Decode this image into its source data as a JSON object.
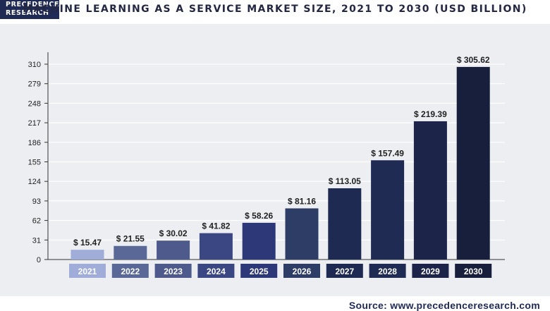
{
  "brand": {
    "line1": "PRECEDENCE",
    "line2": "RESEARCH"
  },
  "source_text": "Source: www.precedenceresearch.com",
  "chart_data": {
    "type": "bar",
    "title": "MACHINE LEARNING AS A SERVICE MARKET SIZE, 2021 TO 2030 (USD BILLION)",
    "categories": [
      "2021",
      "2022",
      "2023",
      "2024",
      "2025",
      "2026",
      "2027",
      "2028",
      "2029",
      "2030"
    ],
    "values": [
      15.47,
      21.55,
      30.02,
      41.82,
      58.26,
      81.16,
      113.05,
      157.49,
      219.39,
      305.62
    ],
    "value_labels": [
      "$ 15.47",
      "$ 21.55",
      "$ 30.02",
      "$ 41.82",
      "$ 58.26",
      "$ 81.16",
      "$ 113.05",
      "$ 157.49",
      "$ 219.39",
      "$ 305.62"
    ],
    "yticks": [
      0,
      31,
      62,
      93,
      124,
      155,
      186,
      217,
      248,
      279,
      310
    ],
    "ylim": [
      0,
      310
    ],
    "xlabel": "",
    "ylabel": "",
    "grid": true,
    "bar_colors": [
      "#9fadd8",
      "#5a6897",
      "#4e5a8c",
      "#3b4782",
      "#2d3878",
      "#2d3d66",
      "#1e2a52",
      "#1f2b52",
      "#1c2549",
      "#171f3d"
    ],
    "label_box_colors": [
      "#9fadd8",
      "#5a6897",
      "#4e5a8c",
      "#3b4782",
      "#2d3878",
      "#2d3d66",
      "#1e2a52",
      "#1f2b52",
      "#1c2549",
      "#171f3d"
    ]
  }
}
